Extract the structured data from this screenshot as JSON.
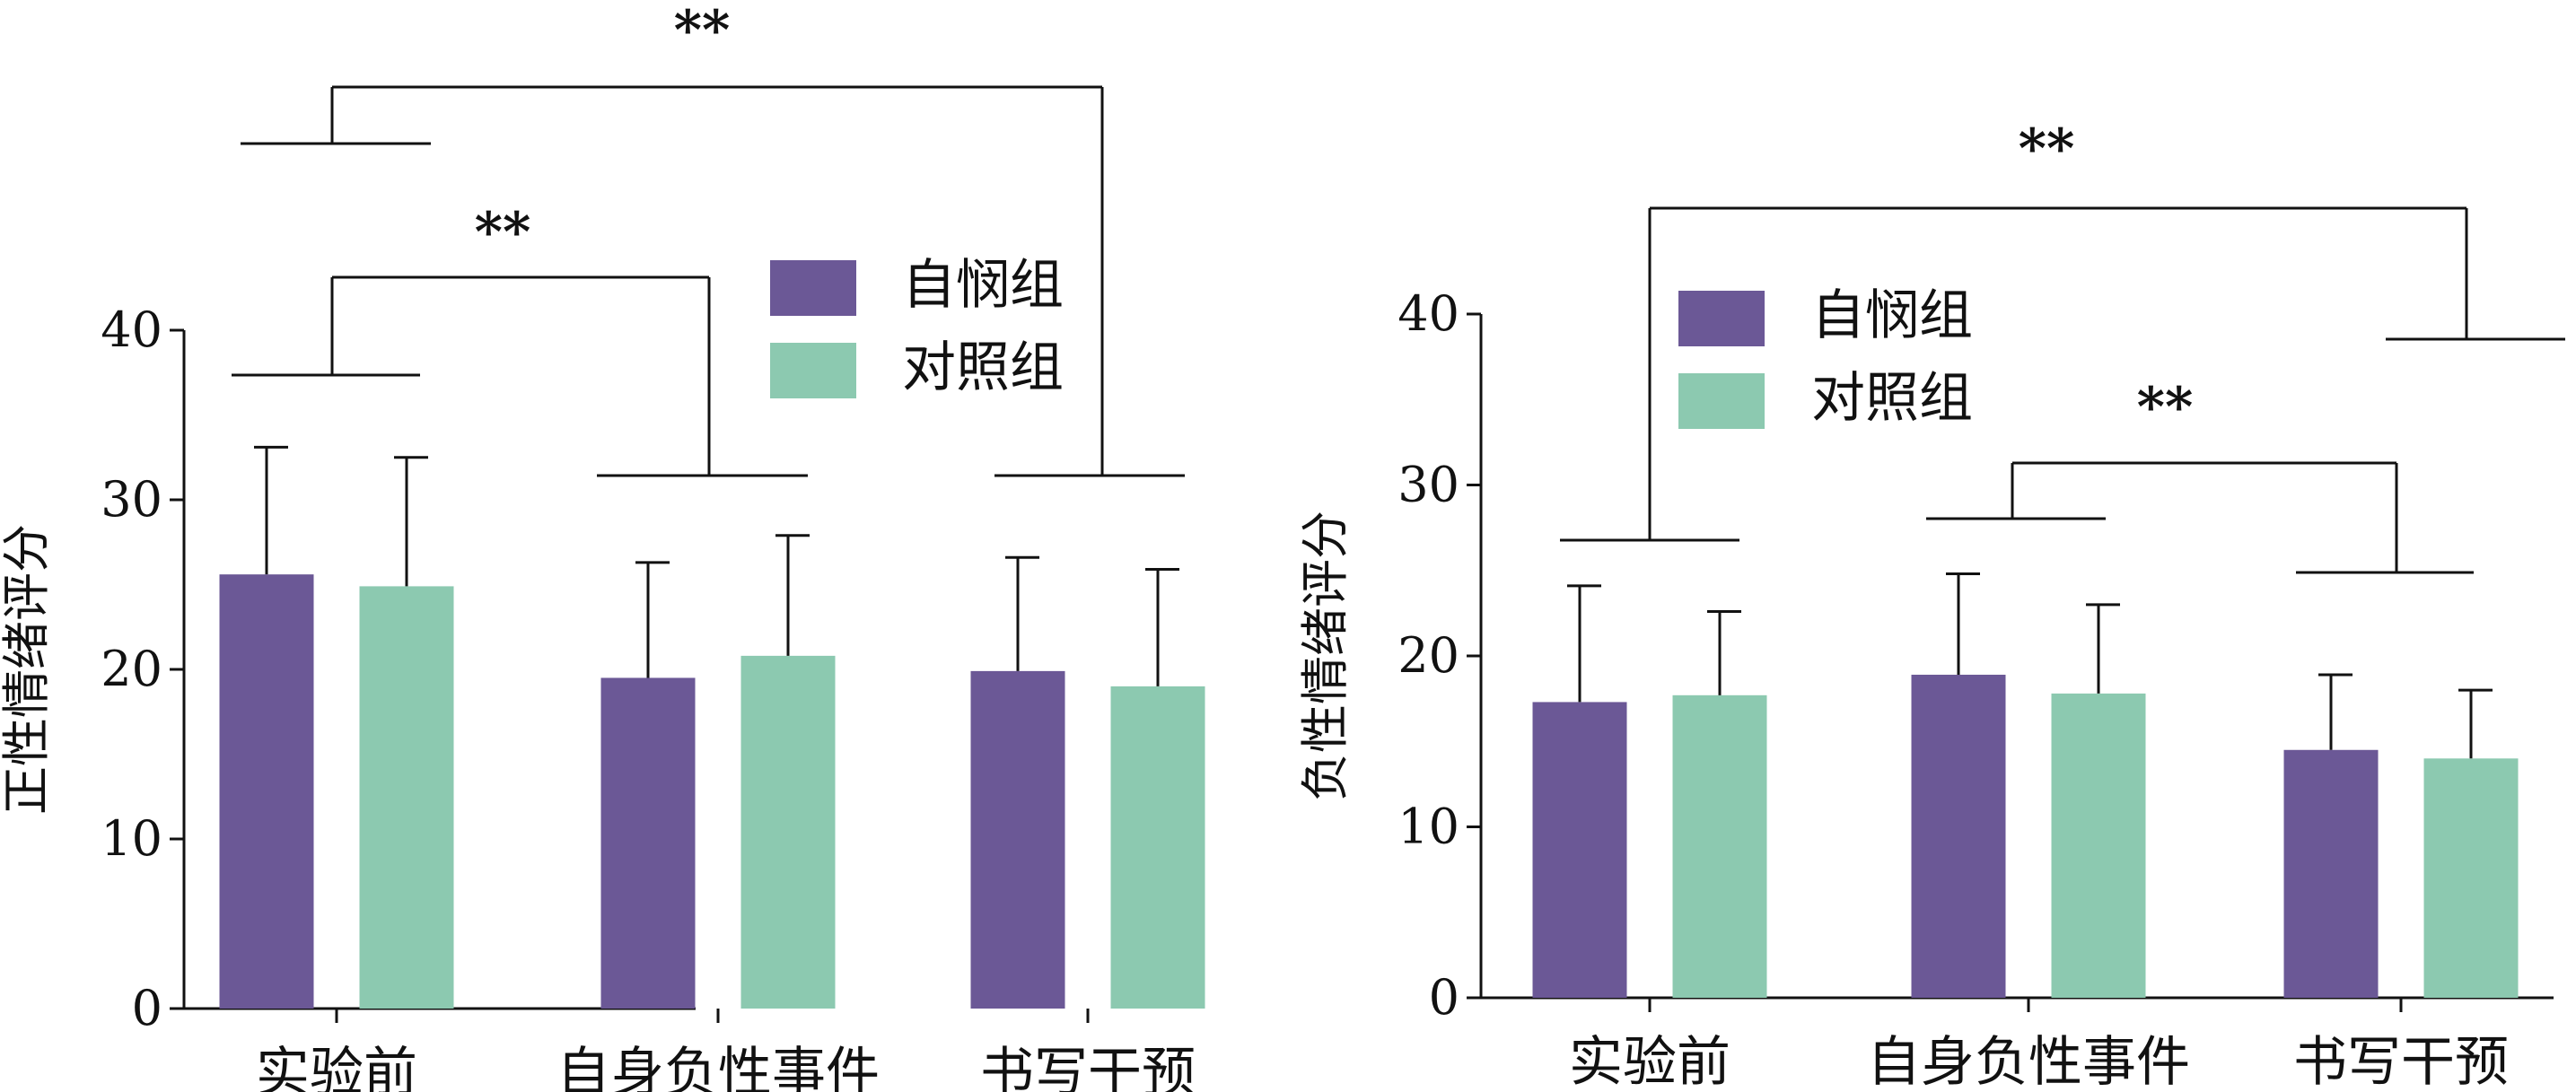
{
  "chart_data": [
    {
      "type": "bar",
      "title": "",
      "xlabel": "",
      "ylabel": "正性情绪评分",
      "ylim": [
        0,
        40
      ],
      "yticks": [
        0,
        10,
        20,
        30,
        40
      ],
      "categories": [
        "实验前",
        "自身负性事件",
        "书写干预"
      ],
      "grid": false,
      "legend_position": "top-right",
      "series": [
        {
          "name": "自悯组",
          "color": "#6b5896",
          "values": [
            25.6,
            19.5,
            19.9
          ],
          "error": [
            7.5,
            6.8,
            6.7
          ]
        },
        {
          "name": "对照组",
          "color": "#8cc9b0",
          "values": [
            24.9,
            20.8,
            19.0
          ],
          "error": [
            7.6,
            7.1,
            6.9
          ]
        }
      ],
      "significance": [
        {
          "label": "**",
          "from": "实验前",
          "to": "自身负性事件"
        },
        {
          "label": "**",
          "from": "实验前",
          "to": "书写干预"
        }
      ]
    },
    {
      "type": "bar",
      "title": "",
      "xlabel": "",
      "ylabel": "负性情绪评分",
      "ylim": [
        0,
        40
      ],
      "yticks": [
        0,
        10,
        20,
        30,
        40
      ],
      "categories": [
        "实验前",
        "自身负性事件",
        "书写干预"
      ],
      "grid": false,
      "legend_position": "top-left",
      "series": [
        {
          "name": "自悯组",
          "color": "#6b5896",
          "values": [
            17.3,
            18.9,
            14.5
          ],
          "error": [
            6.8,
            5.9,
            4.4
          ]
        },
        {
          "name": "对照组",
          "color": "#8cc9b0",
          "values": [
            17.7,
            17.8,
            14.0
          ],
          "error": [
            4.9,
            5.2,
            4.0
          ]
        }
      ],
      "significance": [
        {
          "label": "**",
          "from": "实验前",
          "to": "书写干预"
        },
        {
          "label": "**",
          "from": "自身负性事件",
          "to": "书写干预"
        }
      ]
    }
  ]
}
